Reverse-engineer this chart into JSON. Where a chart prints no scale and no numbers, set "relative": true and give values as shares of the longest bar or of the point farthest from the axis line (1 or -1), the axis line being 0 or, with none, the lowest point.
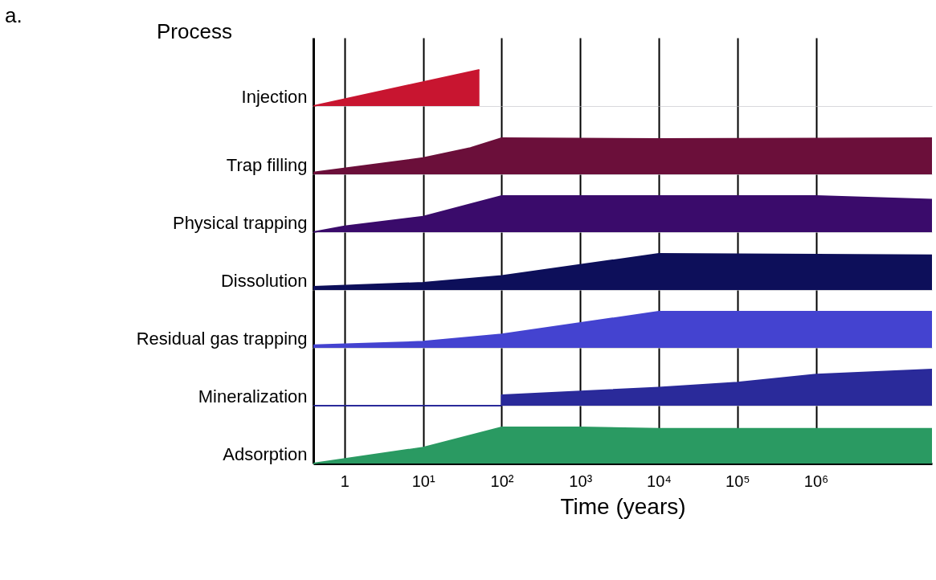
{
  "chart_data": [
    {
      "type": "area",
      "annotations": [
        "a.",
        "Process"
      ],
      "ylabel": "Injection",
      "relative": true,
      "x": [
        0.4,
        52
      ],
      "xlim": [
        0.4,
        30000000
      ],
      "log": "x",
      "grid": "x",
      "tick_labels": false,
      "xticks": [
        {
          "value": 1,
          "label": null
        },
        {
          "value": 10,
          "label": null
        },
        {
          "value": 100,
          "label": null
        },
        {
          "value": 1000,
          "label": null
        },
        {
          "value": 10000,
          "label": null
        },
        {
          "value": 100000,
          "label": null
        },
        {
          "value": 1000000,
          "label": null
        }
      ],
      "series": [
        {
          "color": "#c81530",
          "values": [
            0,
            1
          ]
        }
      ]
    },
    {
      "type": "area",
      "ylabel": "Trap filling",
      "relative": true,
      "x": [
        0.4,
        10,
        40,
        100,
        10000,
        30000000
      ],
      "xlim": [
        0.4,
        30000000
      ],
      "log": "x",
      "grid": "x",
      "tick_labels": false,
      "xticks": [
        {
          "value": 1,
          "label": null
        },
        {
          "value": 10,
          "label": null
        },
        {
          "value": 100,
          "label": null
        },
        {
          "value": 1000,
          "label": null
        },
        {
          "value": 10000,
          "label": null
        },
        {
          "value": 100000,
          "label": null
        },
        {
          "value": 1000000,
          "label": null
        }
      ],
      "series": [
        {
          "color": "#6b0f3a",
          "values": [
            0.05,
            0.45,
            0.73,
            1,
            0.98,
            1
          ]
        }
      ]
    },
    {
      "type": "area",
      "ylabel": "Physical trapping",
      "relative": true,
      "x": [
        0.4,
        1,
        10,
        100,
        1000000,
        30000000
      ],
      "xlim": [
        0.4,
        30000000
      ],
      "log": "x",
      "grid": "x",
      "tick_labels": false,
      "xticks": [
        {
          "value": 1,
          "label": null
        },
        {
          "value": 10,
          "label": null
        },
        {
          "value": 100,
          "label": null
        },
        {
          "value": 1000,
          "label": null
        },
        {
          "value": 10000,
          "label": null
        },
        {
          "value": 100000,
          "label": null
        },
        {
          "value": 1000000,
          "label": null
        }
      ],
      "series": [
        {
          "color": "#3a0b6b",
          "values": [
            0,
            0.16,
            0.43,
            1,
            1,
            0.9
          ]
        }
      ]
    },
    {
      "type": "area",
      "ylabel": "Dissolution",
      "relative": true,
      "x": [
        0.4,
        10,
        100,
        10000,
        30000000
      ],
      "xlim": [
        0.4,
        30000000
      ],
      "log": "x",
      "grid": "x",
      "tick_labels": false,
      "xticks": [
        {
          "value": 1,
          "label": null
        },
        {
          "value": 10,
          "label": null
        },
        {
          "value": 100,
          "label": null
        },
        {
          "value": 1000,
          "label": null
        },
        {
          "value": 10000,
          "label": null
        },
        {
          "value": 100000,
          "label": null
        },
        {
          "value": 1000000,
          "label": null
        }
      ],
      "series": [
        {
          "color": "#0d0f5a",
          "values": [
            0.09,
            0.2,
            0.39,
            1,
            0.96
          ]
        }
      ]
    },
    {
      "type": "area",
      "ylabel": "Residual gas trapping",
      "relative": true,
      "x": [
        0.4,
        10,
        100,
        10000,
        30000000
      ],
      "xlim": [
        0.4,
        30000000
      ],
      "log": "x",
      "grid": "x",
      "tick_labels": false,
      "xticks": [
        {
          "value": 1,
          "label": null
        },
        {
          "value": 10,
          "label": null
        },
        {
          "value": 100,
          "label": null
        },
        {
          "value": 1000,
          "label": null
        },
        {
          "value": 10000,
          "label": null
        },
        {
          "value": 100000,
          "label": null
        },
        {
          "value": 1000000,
          "label": null
        }
      ],
      "series": [
        {
          "color": "#4443d0",
          "values": [
            0.07,
            0.17,
            0.37,
            1,
            1
          ]
        }
      ]
    },
    {
      "type": "area",
      "ylabel": "Mineralization",
      "relative": true,
      "x": [
        0.4,
        100,
        100,
        10000,
        100000,
        1000000,
        30000000
      ],
      "xlim": [
        0.4,
        30000000
      ],
      "log": "x",
      "grid": "x",
      "tick_labels": false,
      "xticks": [
        {
          "value": 1,
          "label": null
        },
        {
          "value": 10,
          "label": null
        },
        {
          "value": 100,
          "label": null
        },
        {
          "value": 1000,
          "label": null
        },
        {
          "value": 10000,
          "label": null
        },
        {
          "value": 100000,
          "label": null
        },
        {
          "value": 1000000,
          "label": null
        }
      ],
      "series": [
        {
          "color": "#2a2a9a",
          "values": [
            0,
            0,
            0.29,
            0.5,
            0.64,
            0.86,
            1
          ]
        }
      ]
    },
    {
      "type": "area",
      "ylabel": "Adsorption",
      "xlabel": "Time (years)",
      "relative": true,
      "x": [
        0.4,
        10,
        100,
        1000,
        10000,
        30000000
      ],
      "xlim": [
        0.4,
        30000000
      ],
      "log": "x",
      "grid": "x",
      "tick_labels": "x",
      "xticks": [
        1,
        {
          "value": 10,
          "label": "10¹"
        },
        {
          "value": 100,
          "label": "10²"
        },
        {
          "value": 1000,
          "label": "10³"
        },
        {
          "value": 10000,
          "label": "10⁴"
        },
        {
          "value": 100000,
          "label": "10⁵"
        },
        {
          "value": 1000000,
          "label": "10⁶"
        }
      ],
      "series": [
        {
          "color": "#2a9a62",
          "values": [
            0,
            0.44,
            1,
            1,
            0.96,
            0.96
          ]
        }
      ]
    }
  ]
}
